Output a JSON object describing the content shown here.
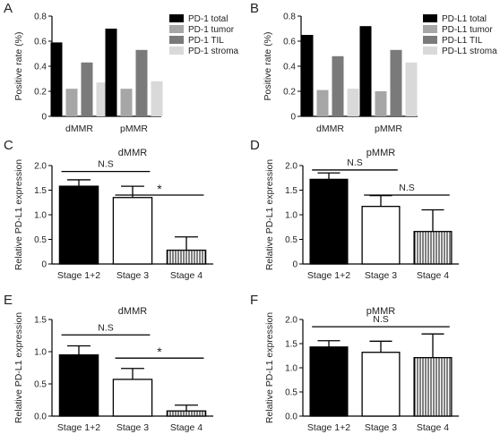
{
  "chart_data": [
    {
      "letter": "A",
      "type": "bar",
      "title": "",
      "ylabel": "Positive rate (%)",
      "xlabel": "",
      "ylim": [
        0,
        0.8
      ],
      "yticks": [
        "0",
        "0.2",
        "0.4",
        "0.6",
        "0.8"
      ],
      "categories": [
        "dMMR",
        "pMMR"
      ],
      "series": [
        {
          "name": "PD-1 total",
          "color": "#000000",
          "values": [
            0.59,
            0.7
          ]
        },
        {
          "name": "PD-1 tumor",
          "color": "#a6a6a6",
          "values": [
            0.22,
            0.22
          ]
        },
        {
          "name": "PD-1 TIL",
          "color": "#7a7a7a",
          "values": [
            0.43,
            0.53
          ]
        },
        {
          "name": "PD-1 stroma",
          "color": "#d9d9d9",
          "values": [
            0.27,
            0.28
          ]
        }
      ],
      "legend_position": "top-right"
    },
    {
      "letter": "B",
      "type": "bar",
      "title": "",
      "ylabel": "Positive rate (%)",
      "xlabel": "",
      "ylim": [
        0,
        0.8
      ],
      "yticks": [
        "0",
        "0.2",
        "0.4",
        "0.6",
        "0.8"
      ],
      "categories": [
        "dMMR",
        "pMMR"
      ],
      "series": [
        {
          "name": "PD-L1 total",
          "color": "#000000",
          "values": [
            0.65,
            0.72
          ]
        },
        {
          "name": "PD-L1 tumor",
          "color": "#a6a6a6",
          "values": [
            0.21,
            0.2
          ]
        },
        {
          "name": "PD-L1 TIL",
          "color": "#7a7a7a",
          "values": [
            0.48,
            0.53
          ]
        },
        {
          "name": "PD-L1 stroma",
          "color": "#d9d9d9",
          "values": [
            0.22,
            0.43
          ]
        }
      ],
      "legend_position": "top-right"
    },
    {
      "letter": "C",
      "type": "bar",
      "title": "dMMR",
      "ylabel": "Relative PD-L1 expression",
      "xlabel": "",
      "ylim": [
        0,
        2.0
      ],
      "yticks": [
        "0",
        "0.5",
        "1.0",
        "1.5",
        "2.0"
      ],
      "categories": [
        "Stage 1+2",
        "Stage 3",
        "Stage 4"
      ],
      "values": [
        1.58,
        1.35,
        0.28
      ],
      "errors": [
        0.13,
        0.23,
        0.27
      ],
      "fills": [
        "black",
        "white",
        "stripes"
      ],
      "annotations": [
        {
          "from": 0,
          "to": 1,
          "label": "N.S",
          "level": 1.88
        },
        {
          "from": 1,
          "to": 2,
          "label": "*",
          "level": 1.4
        }
      ]
    },
    {
      "letter": "D",
      "type": "bar",
      "title": "pMMR",
      "ylabel": "Relative PD-L1 expression",
      "xlabel": "",
      "ylim": [
        0,
        2.0
      ],
      "yticks": [
        "0",
        "0.5",
        "1.0",
        "1.5",
        "2.0"
      ],
      "categories": [
        "Stage 1+2",
        "Stage 3",
        "Stage 4"
      ],
      "values": [
        1.72,
        1.17,
        0.66
      ],
      "errors": [
        0.13,
        0.22,
        0.44
      ],
      "fills": [
        "black",
        "white",
        "stripes"
      ],
      "annotations": [
        {
          "from": 0,
          "to": 1,
          "label": "N.S",
          "level": 1.91
        },
        {
          "from": 1,
          "to": 2,
          "label": "N.S",
          "level": 1.4
        }
      ]
    },
    {
      "letter": "E",
      "type": "bar",
      "title": "dMMR",
      "ylabel": "Relative PD-L1 expression",
      "xlabel": "",
      "ylim": [
        0,
        1.5
      ],
      "yticks": [
        "0.0",
        "0.5",
        "1.0",
        "1.5"
      ],
      "categories": [
        "Stage 1+2",
        "Stage 3",
        "Stage 4"
      ],
      "values": [
        0.95,
        0.57,
        0.08
      ],
      "errors": [
        0.14,
        0.17,
        0.09
      ],
      "fills": [
        "black",
        "white",
        "stripes"
      ],
      "annotations": [
        {
          "from": 0,
          "to": 1,
          "label": "N.S",
          "level": 1.26
        },
        {
          "from": 1,
          "to": 2,
          "label": "*",
          "level": 0.9
        }
      ]
    },
    {
      "letter": "F",
      "type": "bar",
      "title": "pMMR",
      "ylabel": "Relative PD-L1 expression",
      "xlabel": "",
      "ylim": [
        0,
        2.0
      ],
      "yticks": [
        "0.0",
        "0.5",
        "1.0",
        "1.5",
        "2.0"
      ],
      "categories": [
        "Stage 1+2",
        "Stage 3",
        "Stage 4"
      ],
      "values": [
        1.43,
        1.32,
        1.21
      ],
      "errors": [
        0.13,
        0.23,
        0.49
      ],
      "fills": [
        "black",
        "white",
        "stripes"
      ],
      "annotations": [
        {
          "from": 0,
          "to": 2,
          "label": "N.S",
          "level": 1.85
        }
      ]
    }
  ]
}
